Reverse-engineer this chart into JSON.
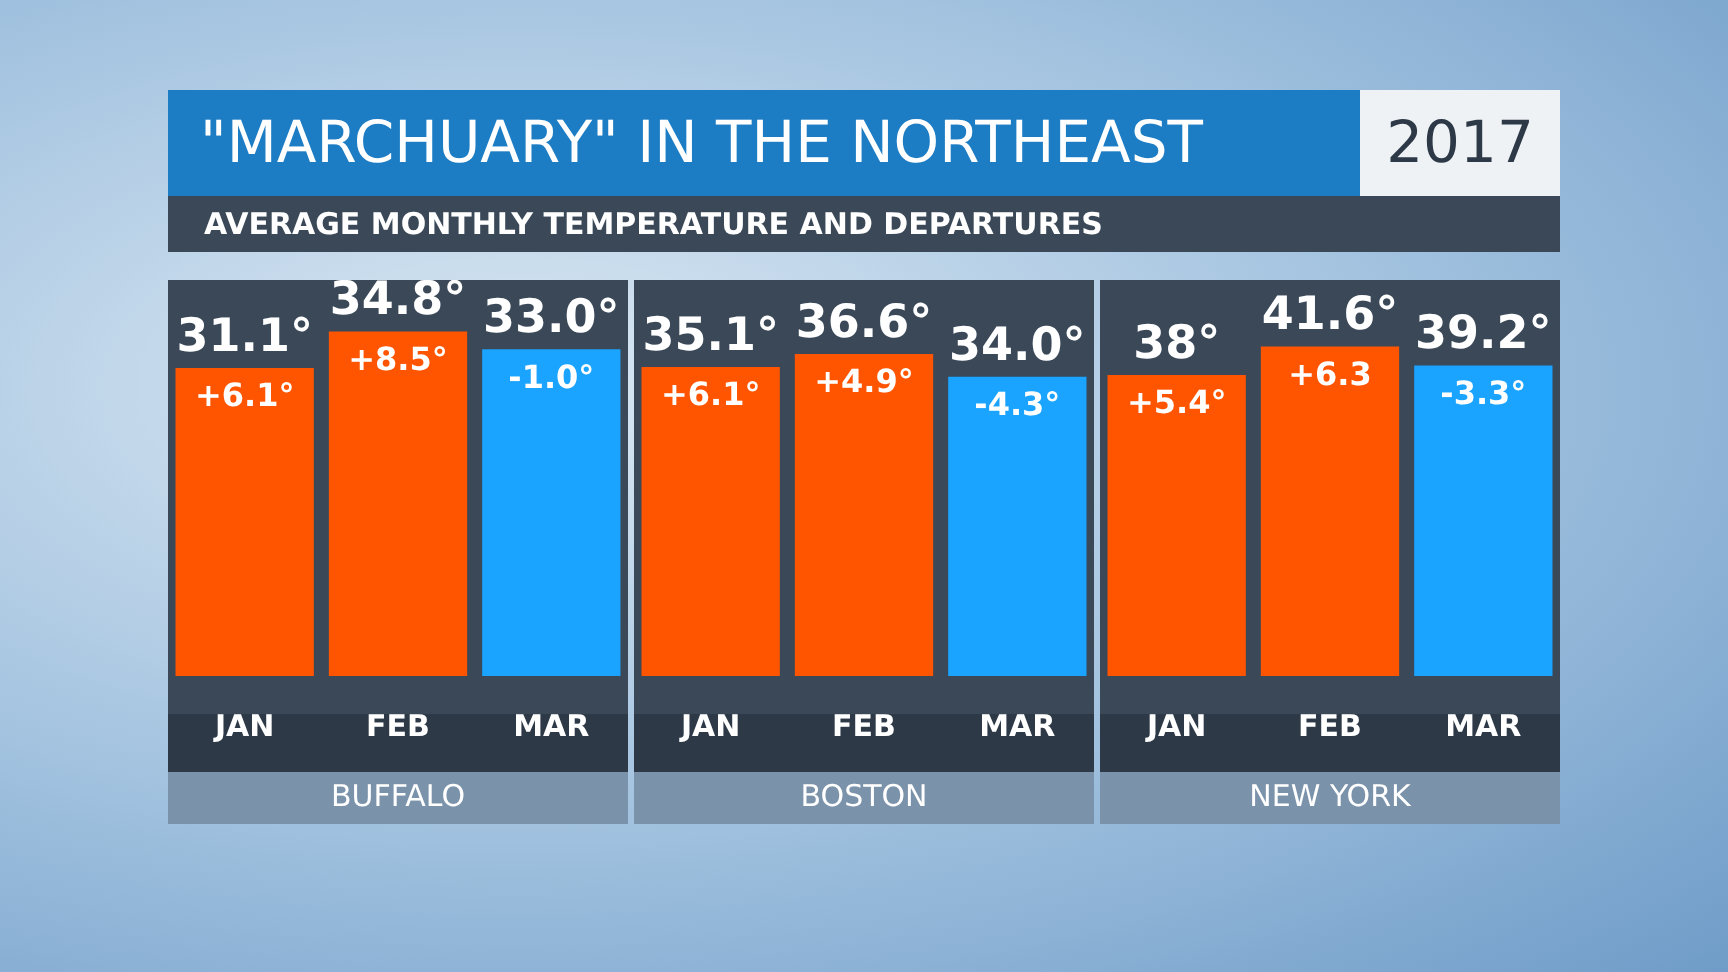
{
  "chart_data": [
    {
      "type": "bar",
      "title": "\"MARCHUARY\" IN THE NORTHEAST",
      "subtitle": "AVERAGE MONTHLY TEMPERATURE AND DEPARTURES",
      "xlabel": "BUFFALO",
      "categories": [
        "JAN",
        "FEB",
        "MAR"
      ],
      "values": [
        31.1,
        34.8,
        33.0
      ],
      "colors": [
        "#ff5500",
        "#ff5500",
        "#1aa3ff"
      ],
      "value_labels": [
        "31.1°",
        "34.8°",
        "33.0°"
      ],
      "annotations": [
        "2017",
        {
          "text": "+6.1°",
          "x": "JAN",
          "y": 31.1
        },
        {
          "text": "+8.5°",
          "x": "FEB",
          "y": 34.8
        },
        {
          "text": "-1.0°",
          "x": "MAR",
          "y": 33.0
        }
      ]
    },
    {
      "type": "bar",
      "xlabel": "BOSTON",
      "categories": [
        "JAN",
        "FEB",
        "MAR"
      ],
      "values": [
        35.1,
        36.6,
        34.0
      ],
      "colors": [
        "#ff5500",
        "#ff5500",
        "#1aa3ff"
      ],
      "value_labels": [
        "35.1°",
        "36.6°",
        "34.0°"
      ],
      "annotations": [
        {
          "text": "+6.1°",
          "x": "JAN",
          "y": 35.1
        },
        {
          "text": "+4.9°",
          "x": "FEB",
          "y": 36.6
        },
        {
          "text": "-4.3°",
          "x": "MAR",
          "y": 34.0
        }
      ]
    },
    {
      "type": "bar",
      "xlabel": "NEW YORK",
      "categories": [
        "JAN",
        "FEB",
        "MAR"
      ],
      "values": [
        38,
        41.6,
        39.2
      ],
      "colors": [
        "#ff5500",
        "#ff5500",
        "#1aa3ff"
      ],
      "value_labels": [
        "38°",
        "41.6°",
        "39.2°"
      ],
      "annotations": [
        {
          "text": "+5.4°",
          "x": "JAN",
          "y": 38
        },
        {
          "text": "+6.3",
          "x": "FEB",
          "y": 41.6
        },
        {
          "text": "-3.3°",
          "x": "MAR",
          "y": 39.2
        }
      ]
    }
  ]
}
